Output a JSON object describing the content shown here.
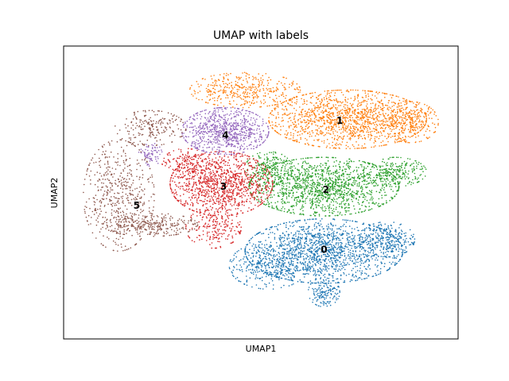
{
  "chart_data": {
    "type": "scatter",
    "title": "UMAP with labels",
    "xlabel": "UMAP1",
    "ylabel": "UMAP2",
    "xticks": "none",
    "yticks": "none",
    "grid": false,
    "legend": "on data",
    "series": [
      {
        "name": "0",
        "color": "#1f77b4",
        "label": "0",
        "label_pos": [
          0.66,
          0.305
        ],
        "blobs": [
          {
            "c": [
              0.66,
              0.3
            ],
            "r": [
              0.2,
              0.11
            ],
            "n": 1500
          },
          {
            "c": [
              0.52,
              0.25
            ],
            "r": [
              0.1,
              0.08
            ],
            "n": 350
          },
          {
            "c": [
              0.66,
              0.16
            ],
            "r": [
              0.04,
              0.05
            ],
            "n": 150
          },
          {
            "c": [
              0.82,
              0.34
            ],
            "r": [
              0.07,
              0.06
            ],
            "n": 250
          }
        ]
      },
      {
        "name": "1",
        "color": "#ff7f0e",
        "label": "1",
        "label_pos": [
          0.7,
          0.745
        ],
        "blobs": [
          {
            "c": [
              0.72,
              0.75
            ],
            "r": [
              0.2,
              0.1
            ],
            "n": 1400
          },
          {
            "c": [
              0.46,
              0.85
            ],
            "r": [
              0.14,
              0.06
            ],
            "n": 400
          },
          {
            "c": [
              0.88,
              0.74
            ],
            "r": [
              0.07,
              0.07
            ],
            "n": 250
          }
        ]
      },
      {
        "name": "2",
        "color": "#2ca02c",
        "label": "2",
        "label_pos": [
          0.665,
          0.51
        ],
        "blobs": [
          {
            "c": [
              0.66,
              0.52
            ],
            "r": [
              0.19,
              0.1
            ],
            "n": 1400
          },
          {
            "c": [
              0.84,
              0.57
            ],
            "r": [
              0.08,
              0.05
            ],
            "n": 250
          },
          {
            "c": [
              0.52,
              0.58
            ],
            "r": [
              0.06,
              0.06
            ],
            "n": 200
          }
        ]
      },
      {
        "name": "3",
        "color": "#d62728",
        "label": "3",
        "label_pos": [
          0.405,
          0.52
        ],
        "blobs": [
          {
            "c": [
              0.4,
              0.53
            ],
            "r": [
              0.13,
              0.11
            ],
            "n": 1100
          },
          {
            "c": [
              0.38,
              0.38
            ],
            "r": [
              0.07,
              0.07
            ],
            "n": 200
          },
          {
            "c": [
              0.31,
              0.6
            ],
            "r": [
              0.06,
              0.05
            ],
            "n": 150
          }
        ]
      },
      {
        "name": "4",
        "color": "#9467bd",
        "label": "4",
        "label_pos": [
          0.41,
          0.695
        ],
        "blobs": [
          {
            "c": [
              0.41,
              0.71
            ],
            "r": [
              0.11,
              0.08
            ],
            "n": 800
          },
          {
            "c": [
              0.22,
              0.63
            ],
            "r": [
              0.03,
              0.04
            ],
            "n": 80
          }
        ]
      },
      {
        "name": "5",
        "color": "#8c564b",
        "label": "5",
        "label_pos": [
          0.185,
          0.455
        ],
        "blobs": [
          {
            "c": [
              0.14,
              0.49
            ],
            "r": [
              0.09,
              0.19
            ],
            "n": 500
          },
          {
            "c": [
              0.22,
              0.39
            ],
            "r": [
              0.12,
              0.04
            ],
            "n": 300
          },
          {
            "c": [
              0.22,
              0.72
            ],
            "r": [
              0.09,
              0.06
            ],
            "n": 200
          }
        ]
      }
    ]
  }
}
